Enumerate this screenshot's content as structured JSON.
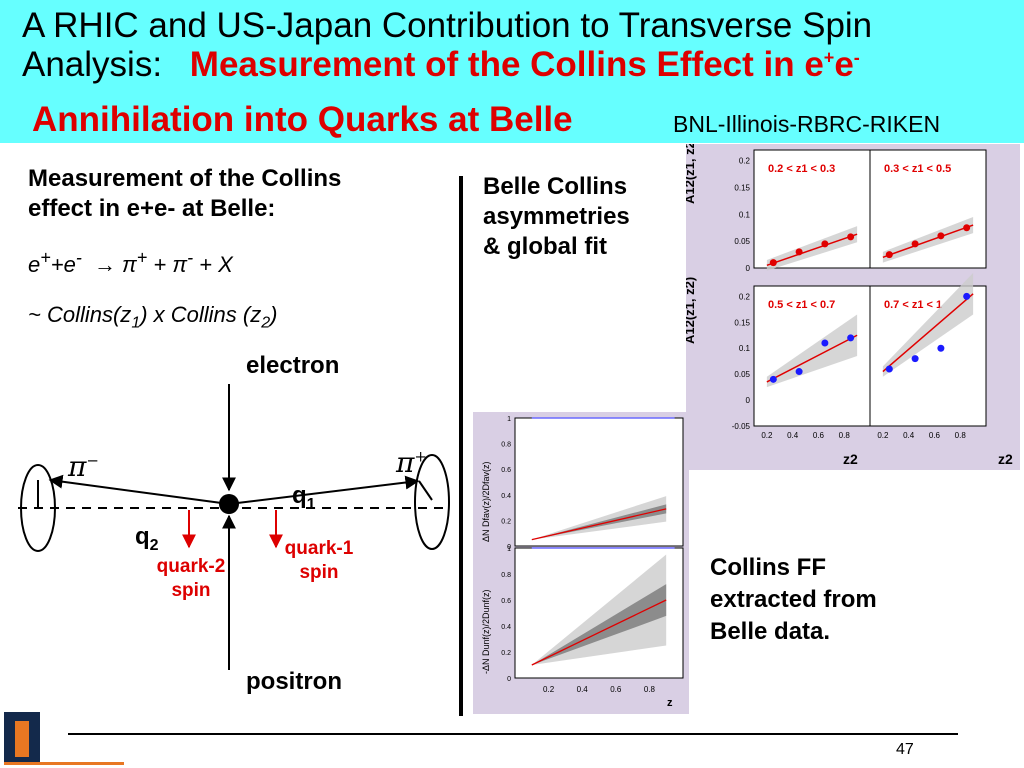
{
  "title": {
    "line1": "A RHIC and US-Japan Contribution to Transverse Spin",
    "line2_prefix": "Analysis:",
    "line2_red": "Measurement of the Collins Effect in e",
    "sup_plus": "+",
    "red_e": "e",
    "sup_minus": "-",
    "line3_red": "Annihilation into Quarks at Belle",
    "collab": "BNL-Illinois-RBRC-RIKEN"
  },
  "left": {
    "heading_line1": "Measurement of the Collins",
    "heading_line2": "effect in e+e- at Belle:",
    "reaction": {
      "e": "e",
      "sup_plus": "+",
      "plus_e": "+e",
      "sup_minus": "-",
      "arrow": "→",
      "pi": "π",
      "pi_sup_plus": "+",
      "plus_pi": " + π",
      "pi_sup_minus": "-",
      "tail": " + X"
    },
    "collins": {
      "prefix": "~ Collins(z",
      "sub1": "1",
      "mid": ") x Collins (z",
      "sub2": "2",
      "suffix": ")"
    }
  },
  "diagram": {
    "electron": "electron",
    "positron": "positron",
    "q1": "q",
    "q1_sub": "1",
    "q2": "q",
    "q2_sub": "2",
    "quark1_spin_line1": "quark-1",
    "quark1_spin_line2": "spin",
    "quark2_spin_line1": "quark-2",
    "quark2_spin_line2": "spin",
    "pi_minus": "π",
    "pi_minus_sup": "−",
    "pi_plus": "π",
    "pi_plus_sup": "+"
  },
  "right": {
    "belle_label_line1": "Belle Collins",
    "belle_label_line2": "asymmetries",
    "belle_label_line3": "& global fit",
    "ff_label_line1": "Collins FF",
    "ff_label_line2": "extracted from",
    "ff_label_line3": "Belle data."
  },
  "a12_plot": {
    "ylabel": "A12(z1, z2)",
    "xlabel": "z2",
    "yticks_top": [
      "0.2",
      "0.15",
      "0.1",
      "0.05",
      "0"
    ],
    "yticks_bottom": [
      "0.2",
      "0.15",
      "0.1",
      "0.05",
      "0",
      "-0.05"
    ],
    "xticks": [
      "0.2",
      "0.4",
      "0.6",
      "0.8"
    ],
    "panels": [
      "0.2 < z1 < 0.3",
      "0.3 < z1 < 0.5",
      "0.5 < z1 < 0.7",
      "0.7 < z1 < 1"
    ]
  },
  "ff_plot": {
    "ylabel_top": "ΔN Dfav(z)/2Dfav(z)",
    "ylabel_bottom": "-ΔN Dunf(z)/2Dunf(z)",
    "xlabel": "z",
    "yticks": [
      "1",
      "0.8",
      "0.6",
      "0.4",
      "0.2",
      "0"
    ],
    "xticks": [
      "0.2",
      "0.4",
      "0.6",
      "0.8"
    ]
  },
  "chart_data": [
    {
      "type": "scatter",
      "title": "",
      "ylabel": "A12(z1, z2)",
      "xlabel": "z2",
      "panels": [
        {
          "name": "0.2 < z1 < 0.3",
          "x": [
            0.25,
            0.45,
            0.65,
            0.85
          ],
          "y": [
            0.01,
            0.03,
            0.045,
            0.058
          ],
          "ylim": [
            0,
            0.22
          ]
        },
        {
          "name": "0.3 < z1 < 0.5",
          "x": [
            0.25,
            0.45,
            0.65,
            0.85
          ],
          "y": [
            0.025,
            0.045,
            0.06,
            0.075
          ],
          "ylim": [
            0,
            0.22
          ]
        },
        {
          "name": "0.5 < z1 < 0.7",
          "x": [
            0.25,
            0.45,
            0.65,
            0.85
          ],
          "y": [
            0.04,
            0.055,
            0.11,
            0.12
          ],
          "ylim": [
            -0.05,
            0.22
          ]
        },
        {
          "name": "0.7 < z1 < 1",
          "x": [
            0.25,
            0.45,
            0.65,
            0.85
          ],
          "y": [
            0.06,
            0.08,
            0.1,
            0.2
          ],
          "ylim": [
            -0.05,
            0.22
          ]
        }
      ]
    },
    {
      "type": "line",
      "title": "",
      "xlabel": "z",
      "panels": [
        {
          "name": "ΔN Dfav(z)/2Dfav(z)",
          "x": [
            0.1,
            0.9
          ],
          "y": [
            0.05,
            0.29
          ],
          "ylim": [
            0,
            1
          ]
        },
        {
          "name": "-ΔN Dunf(z)/2Dunf(z)",
          "x": [
            0.1,
            0.9
          ],
          "y": [
            0.1,
            0.6
          ],
          "ylim": [
            0,
            1
          ]
        }
      ]
    }
  ],
  "footer": {
    "page_number": "47"
  }
}
